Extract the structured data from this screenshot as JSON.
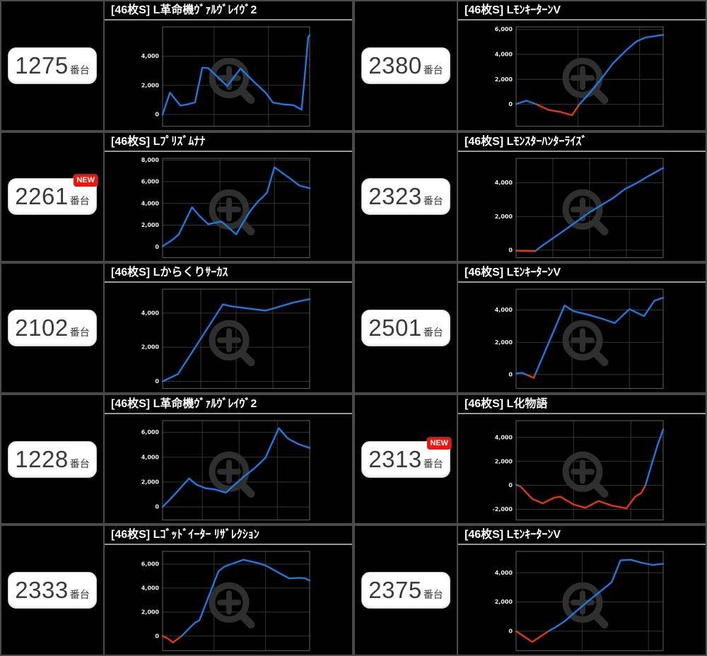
{
  "labels": {
    "unit": "番台",
    "new_badge": "NEW"
  },
  "colors": {
    "background": "#000000",
    "panel_border": "#4a4a4a",
    "title_underline": "#999999",
    "plot_border": "#606060",
    "gridline": "#343434",
    "axis_text": "#f0f0f0",
    "line_positive": "#1b7ae0",
    "line_negative": "#e6380a",
    "watermark": "#2f2f2f",
    "badge_background": "#ffffff",
    "badge_text": "#3a3a3a",
    "new_badge_background": "#f2130a"
  },
  "machines": [
    {
      "number": "1275",
      "title": "[46枚S] L革命機ｳﾞｧﾙｳﾞﾚｲｳﾞ2",
      "is_new": false
    },
    {
      "number": "2380",
      "title": "[46枚S] LﾓﾝｷｰﾀｰﾝV",
      "is_new": false
    },
    {
      "number": "2261",
      "title": "[46枚S] Lﾌﾟﾘｽﾞﾑﾅﾅ",
      "is_new": true
    },
    {
      "number": "2323",
      "title": "[46枚S] Lﾓﾝｽﾀｰﾊﾝﾀｰﾗｲｽﾞ",
      "is_new": false
    },
    {
      "number": "2102",
      "title": "[46枚S] Lからくりｻｰｶｽ",
      "is_new": false
    },
    {
      "number": "2501",
      "title": "[46枚S] LﾓﾝｷｰﾀｰﾝV",
      "is_new": false
    },
    {
      "number": "1228",
      "title": "[46枚S] L革命機ｳﾞｧﾙｳﾞﾚｲｳﾞ2",
      "is_new": false
    },
    {
      "number": "2313",
      "title": "[46枚S] L化物語",
      "is_new": true
    },
    {
      "number": "2333",
      "title": "[46枚S] Lｺﾞｯﾄﾞｲｰﾀｰ ﾘｻﾞﾚｸｼｮﾝ",
      "is_new": false
    },
    {
      "number": "2375",
      "title": "[46枚S] LﾓﾝｷｰﾀｰﾝV",
      "is_new": false
    }
  ],
  "chart_data": [
    {
      "type": "line",
      "machine": "1275番台",
      "title": "[46枚S] L革命機ｳﾞｧﾙｳﾞﾚｲｳﾞ2",
      "y_ticks": [
        0,
        2000,
        4000
      ],
      "y_min": -800,
      "y_max": 6000,
      "x_gridlines": [
        0.35,
        0.72
      ],
      "grid": true,
      "color_rule": "blue above 0, red below 0",
      "points": [
        [
          0,
          0
        ],
        [
          0.05,
          1500
        ],
        [
          0.12,
          620
        ],
        [
          0.17,
          700
        ],
        [
          0.22,
          830
        ],
        [
          0.27,
          3200
        ],
        [
          0.31,
          3180
        ],
        [
          0.44,
          1950
        ],
        [
          0.53,
          3150
        ],
        [
          0.62,
          2250
        ],
        [
          0.7,
          1500
        ],
        [
          0.75,
          820
        ],
        [
          0.82,
          700
        ],
        [
          0.89,
          640
        ],
        [
          0.945,
          330
        ],
        [
          0.96,
          1900
        ],
        [
          0.99,
          5300
        ],
        [
          1,
          5430
        ]
      ]
    },
    {
      "type": "line",
      "machine": "2380番台",
      "title": "[46枚S] LﾓﾝｷｰﾀｰﾝV",
      "y_ticks": [
        0,
        2000,
        4000,
        6000
      ],
      "y_min": -1750,
      "y_max": 6200,
      "x_gridlines": [
        0.42,
        0.84
      ],
      "grid": true,
      "color_rule": "blue above 0, red below 0",
      "points": [
        [
          0,
          30
        ],
        [
          0.07,
          290
        ],
        [
          0.14,
          0
        ],
        [
          0.22,
          -450
        ],
        [
          0.3,
          -600
        ],
        [
          0.38,
          -870
        ],
        [
          0.43,
          0
        ],
        [
          0.5,
          900
        ],
        [
          0.57,
          1900
        ],
        [
          0.66,
          3300
        ],
        [
          0.75,
          4350
        ],
        [
          0.82,
          5050
        ],
        [
          0.88,
          5350
        ],
        [
          0.95,
          5480
        ],
        [
          1,
          5560
        ]
      ]
    },
    {
      "type": "line",
      "machine": "2261番台",
      "title": "[46枚S] Lﾌﾟﾘｽﾞﾑﾅﾅ",
      "y_ticks": [
        0,
        2000,
        4000,
        6000,
        8000
      ],
      "y_min": -1000,
      "y_max": 8150,
      "x_gridlines": [
        0.39,
        0.76
      ],
      "grid": true,
      "color_rule": "blue above 0, red below 0",
      "points": [
        [
          0,
          50
        ],
        [
          0.07,
          680
        ],
        [
          0.11,
          1150
        ],
        [
          0.2,
          3650
        ],
        [
          0.25,
          2860
        ],
        [
          0.31,
          2090
        ],
        [
          0.35,
          2200
        ],
        [
          0.4,
          2340
        ],
        [
          0.5,
          1160
        ],
        [
          0.57,
          2750
        ],
        [
          0.6,
          3370
        ],
        [
          0.65,
          4200
        ],
        [
          0.68,
          4570
        ],
        [
          0.71,
          5000
        ],
        [
          0.76,
          7330
        ],
        [
          0.87,
          6270
        ],
        [
          0.93,
          5650
        ],
        [
          1,
          5400
        ]
      ]
    },
    {
      "type": "line",
      "machine": "2323番台",
      "title": "[46枚S] Lﾓﾝｽﾀｰﾊﾝﾀｰﾗｲｽﾞ",
      "y_ticks": [
        0,
        2000,
        4000
      ],
      "y_min": -450,
      "y_max": 5450,
      "x_gridlines": [
        0.25,
        0.5,
        0.75
      ],
      "grid": true,
      "color_rule": "blue above 0, red below 0",
      "points": [
        [
          0,
          -30
        ],
        [
          0.13,
          -60
        ],
        [
          0.18,
          280
        ],
        [
          0.34,
          1250
        ],
        [
          0.5,
          2250
        ],
        [
          0.66,
          3100
        ],
        [
          0.74,
          3630
        ],
        [
          0.82,
          3980
        ],
        [
          0.9,
          4400
        ],
        [
          1,
          4880
        ]
      ]
    },
    {
      "type": "line",
      "machine": "2102番台",
      "title": "[46枚S] Lからくりｻｰｶｽ",
      "y_ticks": [
        0,
        2000,
        4000
      ],
      "y_min": -420,
      "y_max": 5400,
      "x_gridlines": [
        0.26,
        0.5,
        0.75
      ],
      "grid": true,
      "color_rule": "blue above 0, red below 0",
      "points": [
        [
          0,
          0
        ],
        [
          0.105,
          430
        ],
        [
          0.41,
          4510
        ],
        [
          0.47,
          4390
        ],
        [
          0.7,
          4140
        ],
        [
          0.89,
          4620
        ],
        [
          1,
          4820
        ]
      ]
    },
    {
      "type": "line",
      "machine": "2501番台",
      "title": "[46枚S] LﾓﾝｷｰﾀｰﾝV",
      "y_ticks": [
        0,
        2000,
        4000
      ],
      "y_min": -860,
      "y_max": 5290,
      "x_gridlines": [
        0.38,
        0.77
      ],
      "grid": true,
      "color_rule": "blue above 0, red below 0",
      "points": [
        [
          0,
          70
        ],
        [
          0.04,
          110
        ],
        [
          0.12,
          -200
        ],
        [
          0.33,
          4280
        ],
        [
          0.39,
          3930
        ],
        [
          0.49,
          3710
        ],
        [
          0.585,
          3460
        ],
        [
          0.67,
          3190
        ],
        [
          0.77,
          4050
        ],
        [
          0.87,
          3620
        ],
        [
          0.94,
          4570
        ],
        [
          1,
          4760
        ]
      ]
    },
    {
      "type": "line",
      "machine": "1228番台",
      "title": "[46枚S] L革命機ｳﾞｧﾙｳﾞﾚｲｳﾞ2",
      "y_ticks": [
        0,
        2000,
        4000,
        6000
      ],
      "y_min": -1050,
      "y_max": 6940,
      "x_gridlines": [
        0.27,
        0.52,
        0.78
      ],
      "grid": true,
      "color_rule": "blue above 0, red below 0",
      "points": [
        [
          0,
          0
        ],
        [
          0.05,
          600
        ],
        [
          0.1,
          1240
        ],
        [
          0.18,
          2290
        ],
        [
          0.23,
          1790
        ],
        [
          0.29,
          1510
        ],
        [
          0.36,
          1390
        ],
        [
          0.43,
          1150
        ],
        [
          0.49,
          1790
        ],
        [
          0.56,
          2510
        ],
        [
          0.62,
          3060
        ],
        [
          0.67,
          3610
        ],
        [
          0.7,
          3970
        ],
        [
          0.79,
          6340
        ],
        [
          0.85,
          5520
        ],
        [
          0.92,
          5070
        ],
        [
          1,
          4740
        ]
      ]
    },
    {
      "type": "line",
      "machine": "2313番台",
      "title": "[46枚S] L化物語",
      "y_ticks": [
        -2000,
        0,
        2000,
        4000
      ],
      "y_min": -2890,
      "y_max": 5400,
      "x_gridlines": [
        0.39,
        0.78
      ],
      "grid": true,
      "color_rule": "blue above 0, red below 0",
      "points": [
        [
          0,
          60
        ],
        [
          0.03,
          -100
        ],
        [
          0.11,
          -1130
        ],
        [
          0.18,
          -1500
        ],
        [
          0.26,
          -1030
        ],
        [
          0.3,
          -940
        ],
        [
          0.39,
          -1590
        ],
        [
          0.47,
          -1880
        ],
        [
          0.56,
          -1310
        ],
        [
          0.65,
          -1690
        ],
        [
          0.75,
          -1920
        ],
        [
          0.81,
          -940
        ],
        [
          0.85,
          -660
        ],
        [
          0.88,
          0
        ],
        [
          0.92,
          1690
        ],
        [
          0.96,
          3290
        ],
        [
          1,
          4660
        ]
      ]
    },
    {
      "type": "line",
      "machine": "2333番台",
      "title": "[46枚S] Lｺﾞｯﾄﾞｲｰﾀｰ ﾘｻﾞﾚｸｼｮﾝ",
      "y_ticks": [
        0,
        2000,
        4000,
        6000
      ],
      "y_min": -1230,
      "y_max": 7060,
      "x_gridlines": [
        0.35,
        0.7
      ],
      "grid": true,
      "color_rule": "blue above 0, red below 0",
      "points": [
        [
          0,
          0
        ],
        [
          0.04,
          -250
        ],
        [
          0.07,
          -540
        ],
        [
          0.13,
          0
        ],
        [
          0.18,
          630
        ],
        [
          0.22,
          1110
        ],
        [
          0.25,
          1300
        ],
        [
          0.38,
          5400
        ],
        [
          0.42,
          5790
        ],
        [
          0.55,
          6370
        ],
        [
          0.65,
          6080
        ],
        [
          0.7,
          5890
        ],
        [
          0.8,
          5210
        ],
        [
          0.86,
          4810
        ],
        [
          0.93,
          4850
        ],
        [
          0.97,
          4810
        ],
        [
          1,
          4620
        ]
      ]
    },
    {
      "type": "line",
      "machine": "2375番台",
      "title": "[46枚S] LﾓﾝｷｰﾀｰﾝV",
      "y_ticks": [
        0,
        2000,
        4000
      ],
      "y_min": -1340,
      "y_max": 5460,
      "x_gridlines": [
        0.45,
        0.9
      ],
      "grid": true,
      "color_rule": "blue above 0, red below 0",
      "points": [
        [
          0,
          0
        ],
        [
          0.11,
          -740
        ],
        [
          0.22,
          0
        ],
        [
          0.27,
          280
        ],
        [
          0.33,
          680
        ],
        [
          0.49,
          2060
        ],
        [
          0.57,
          2700
        ],
        [
          0.65,
          3350
        ],
        [
          0.71,
          4850
        ],
        [
          0.78,
          4890
        ],
        [
          0.85,
          4690
        ],
        [
          0.93,
          4530
        ],
        [
          1,
          4610
        ]
      ]
    }
  ]
}
